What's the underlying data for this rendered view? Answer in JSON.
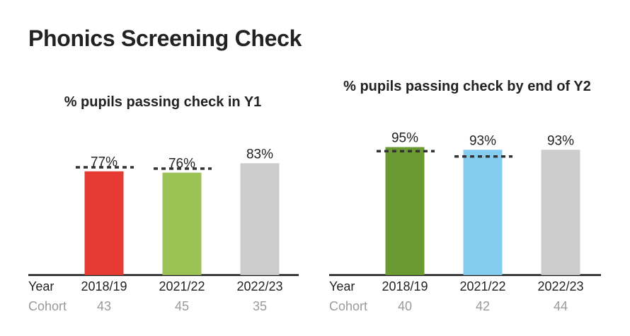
{
  "page_title": "Phonics Screening Check",
  "row_labels": {
    "year": "Year",
    "cohort": "Cohort"
  },
  "chart_data": [
    {
      "type": "bar",
      "title": "% pupils passing check in Y1",
      "categories": [
        "2018/19",
        "2021/22",
        "2022/23"
      ],
      "values": [
        77,
        76,
        83
      ],
      "value_labels": [
        "77%",
        "76%",
        "83%"
      ],
      "benchmark": [
        80,
        79,
        null
      ],
      "cohort": [
        "43",
        "45",
        "35"
      ],
      "colors": [
        "#e63b32",
        "#9bc255",
        "#cccccc"
      ],
      "ylim": [
        0,
        100
      ],
      "grid": false,
      "legend": "none"
    },
    {
      "type": "bar",
      "title": "% pupils passing check by end of Y2",
      "categories": [
        "2018/19",
        "2021/22",
        "2022/23"
      ],
      "values": [
        95,
        93,
        93
      ],
      "value_labels": [
        "95%",
        "93%",
        "93%"
      ],
      "benchmark": [
        92,
        88,
        null
      ],
      "cohort": [
        "40",
        "42",
        "44"
      ],
      "colors": [
        "#6b9a32",
        "#85ccf1",
        "#cccccc"
      ],
      "ylim": [
        0,
        100
      ],
      "grid": false,
      "legend": "none"
    }
  ]
}
